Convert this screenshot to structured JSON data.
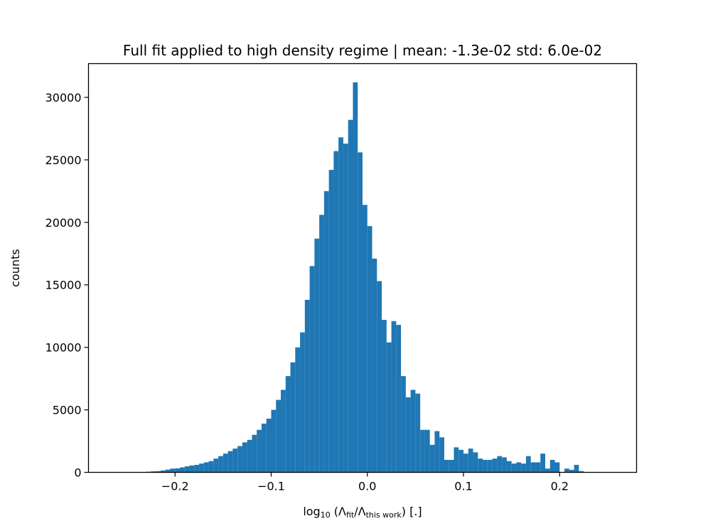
{
  "chart_data": {
    "type": "bar",
    "title": "Full fit applied to high density regime | mean: -1.3e-02 std: 6.0e-02",
    "xlabel": {
      "prefix": "log",
      "base": "10",
      "open": " (Λ",
      "sub1": "fit",
      "mid": "/Λ",
      "sub2": "this work",
      "close": ") [.]"
    },
    "ylabel": "counts",
    "xlim": [
      -0.29,
      0.28
    ],
    "ylim": [
      0,
      32700
    ],
    "xticks": [
      -0.2,
      -0.1,
      0.0,
      0.1,
      0.2
    ],
    "xtick_labels": [
      "−0.2",
      "−0.1",
      "0.0",
      "0.1",
      "0.2"
    ],
    "yticks": [
      0,
      5000,
      10000,
      15000,
      20000,
      25000,
      30000
    ],
    "ytick_labels": [
      "0",
      "5000",
      "10000",
      "15000",
      "20000",
      "25000",
      "30000"
    ],
    "bar_color": "#1f77b4",
    "bin_start": -0.275,
    "bin_width": 0.005,
    "values": [
      0,
      0,
      0,
      0,
      0,
      0,
      0,
      0,
      20,
      50,
      80,
      100,
      150,
      220,
      300,
      320,
      400,
      480,
      550,
      600,
      700,
      800,
      900,
      1100,
      1300,
      1500,
      1700,
      1900,
      2100,
      2400,
      2600,
      3000,
      3400,
      3900,
      4300,
      5000,
      5800,
      6600,
      7700,
      8800,
      10000,
      11200,
      13800,
      16500,
      18700,
      20600,
      22500,
      24200,
      25700,
      26800,
      26300,
      28200,
      31200,
      25600,
      21400,
      19700,
      17100,
      15300,
      12200,
      10400,
      12100,
      11800,
      7700,
      6000,
      6600,
      6300,
      3400,
      3400,
      2200,
      3300,
      2800,
      1000,
      1000,
      2000,
      1800,
      1500,
      1900,
      1600,
      1100,
      1000,
      1000,
      1100,
      1300,
      1200,
      900,
      700,
      800,
      700,
      1300,
      800,
      800,
      1500,
      300,
      1000,
      800,
      0,
      300,
      200,
      600,
      100,
      0,
      0,
      0
    ]
  }
}
